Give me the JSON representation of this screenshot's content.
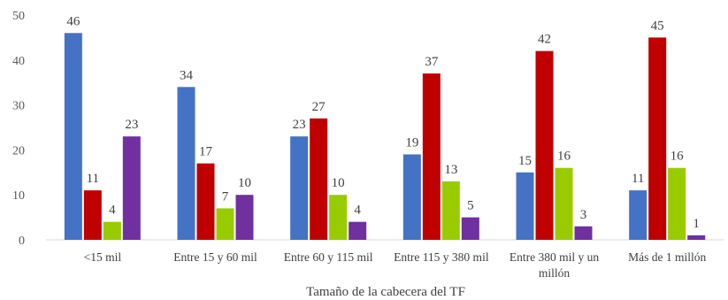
{
  "chart_data": {
    "type": "bar",
    "xlabel": "Tamaño de la cabecera del TF",
    "ylabel": "",
    "ylim": [
      0,
      50
    ],
    "yticks": [
      0,
      10,
      20,
      30,
      40,
      50
    ],
    "grid": false,
    "categories": [
      [
        "<15 mil"
      ],
      [
        "Entre 15 y 60 mil"
      ],
      [
        "Entre 60 y 115 mil"
      ],
      [
        "Entre 115 y 380 mil"
      ],
      [
        "Entre 380 mil y un",
        "millón"
      ],
      [
        "Más de 1 millón"
      ]
    ],
    "series": [
      {
        "color": "#4472C4",
        "values": [
          46,
          34,
          23,
          19,
          15,
          11
        ]
      },
      {
        "color": "#C00000",
        "values": [
          11,
          17,
          27,
          37,
          42,
          45
        ]
      },
      {
        "color": "#99CC00",
        "values": [
          4,
          7,
          10,
          13,
          16,
          16
        ]
      },
      {
        "color": "#7030A0",
        "values": [
          23,
          10,
          4,
          5,
          3,
          1
        ]
      }
    ]
  }
}
